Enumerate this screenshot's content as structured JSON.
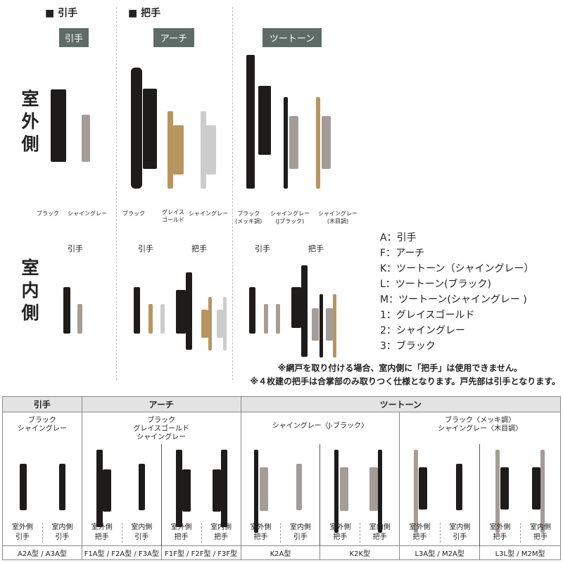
{
  "legend": {
    "pull": "■ 引手",
    "grip": "■ 把手"
  },
  "badges": [
    "引手",
    "アーチ",
    "ツートーン"
  ],
  "side": {
    "outdoor": "室外側",
    "indoor": "室内側"
  },
  "color_labels": [
    [
      "ブラック"
    ],
    [
      "シャイングレー"
    ],
    [
      "ブラック"
    ],
    [
      "グレイス",
      "ゴールド"
    ],
    [
      "シャイングレー"
    ],
    [
      "ブラック",
      "(メッキ調)"
    ],
    [
      "シャイングレー",
      "(Jブラック)"
    ],
    [
      "シャイングレー",
      "(木目調)"
    ]
  ],
  "type_labels": [
    "引手",
    "引手",
    "把手",
    "引手",
    "把手"
  ],
  "keys": [
    "A：引手",
    "F：アーチ",
    "K：ツートーン（シャイングレー）",
    "L：ツートーン(ブラック)",
    "M：ツートーン(シャイングレー )",
    "1：グレイスゴールド",
    "2：シャイングレー",
    "3：ブラック"
  ],
  "notes": [
    "※網戸を取り付ける場合、室内側に「把手」は使用できません。",
    "※４枚建の把手は合掌部のみ取りつく仕様となります。戸先部は引手となります。"
  ],
  "table": {
    "headers": [
      "引手",
      "アーチ",
      "ツートーン"
    ],
    "descs": [
      "ブラック\nシャイングレー",
      "ブラック\nグレイスゴールド\nシャイングレー",
      "シャイングレー〈J-ブラック〉",
      "ブラック〈メッキ調〉\nシャイングレー〈木目調〉"
    ],
    "cells": [
      {
        "out": "室外側",
        "out_t": "引手",
        "in": "室内側",
        "in_t": "引手",
        "model": "A2A型 / A3A型"
      },
      {
        "out": "室外側",
        "out_t": "把手",
        "in": "室内側",
        "in_t": "引手",
        "model": "F1A型 / F2A型 / F3A型"
      },
      {
        "out": "室外側",
        "out_t": "把手",
        "in": "室内側",
        "in_t": "把手",
        "model": "F1F型 / F2F型 / F3F型"
      },
      {
        "out": "室外側",
        "out_t": "把手",
        "in": "室内側",
        "in_t": "引手",
        "model": "K2A型"
      },
      {
        "out": "室外側",
        "out_t": "把手",
        "in": "室内側",
        "in_t": "把手",
        "model": "K2K型"
      },
      {
        "out": "室外側",
        "out_t": "把手",
        "in": "室内側",
        "in_t": "引手",
        "model": "L3A型 / M2A型"
      },
      {
        "out": "室外側",
        "out_t": "把手",
        "in": "室内側",
        "in_t": "把手",
        "model": "L3L型 / M2M型"
      }
    ]
  }
}
